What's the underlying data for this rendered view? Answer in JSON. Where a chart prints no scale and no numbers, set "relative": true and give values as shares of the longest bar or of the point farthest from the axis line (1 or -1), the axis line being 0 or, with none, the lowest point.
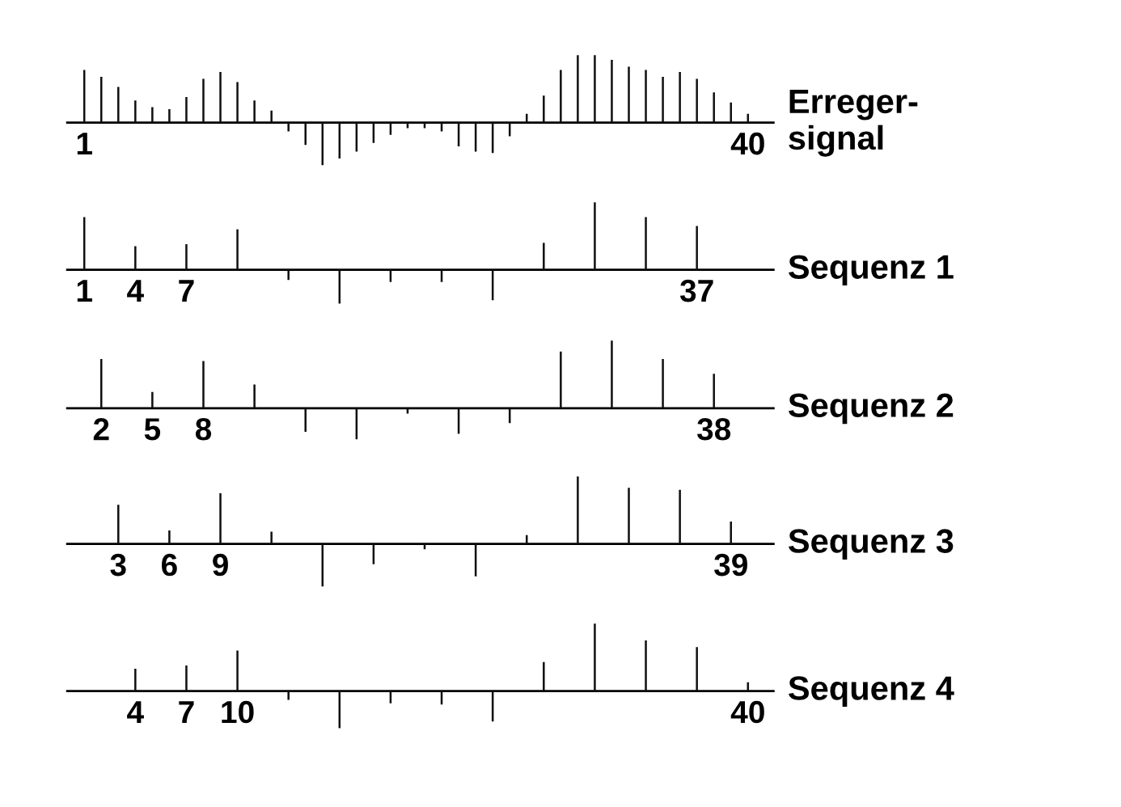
{
  "chart_data": [
    {
      "type": "bar",
      "relative": true,
      "title": "Erreger-\nsignal",
      "color": "#111111",
      "categories": [
        "1",
        null,
        null,
        null,
        null,
        null,
        null,
        null,
        null,
        null,
        null,
        null,
        null,
        null,
        null,
        null,
        null,
        null,
        null,
        null,
        null,
        null,
        null,
        null,
        null,
        null,
        null,
        null,
        null,
        null,
        null,
        null,
        null,
        null,
        null,
        null,
        null,
        null,
        null,
        "40"
      ],
      "values": [
        0.78,
        0.68,
        0.53,
        0.33,
        0.23,
        0.2,
        0.38,
        0.65,
        0.75,
        0.6,
        0.33,
        0.18,
        -0.13,
        -0.33,
        -0.63,
        -0.53,
        -0.43,
        -0.3,
        -0.18,
        -0.08,
        -0.08,
        -0.13,
        -0.35,
        -0.43,
        -0.45,
        -0.2,
        0.13,
        0.4,
        0.78,
        1,
        1,
        0.93,
        0.83,
        0.78,
        0.68,
        0.75,
        0.65,
        0.45,
        0.3,
        0.13
      ]
    },
    {
      "type": "bar",
      "relative": true,
      "title": "Sequenz 1",
      "color": "#111111",
      "categories": [
        "1",
        null,
        null,
        "4",
        null,
        null,
        "7",
        null,
        null,
        null,
        null,
        null,
        null,
        null,
        null,
        null,
        null,
        null,
        null,
        null,
        null,
        null,
        null,
        null,
        null,
        null,
        null,
        null,
        null,
        null,
        null,
        null,
        null,
        null,
        null,
        null,
        "37",
        null,
        null,
        null
      ],
      "values": [
        0.78,
        null,
        null,
        0.35,
        null,
        null,
        0.38,
        null,
        null,
        0.6,
        null,
        null,
        -0.15,
        null,
        null,
        -0.5,
        null,
        null,
        -0.18,
        null,
        null,
        -0.18,
        null,
        null,
        -0.45,
        null,
        null,
        0.4,
        null,
        null,
        1,
        null,
        null,
        0.78,
        null,
        null,
        0.65,
        null,
        null,
        null
      ]
    },
    {
      "type": "bar",
      "relative": true,
      "title": "Sequenz 2",
      "color": "#111111",
      "categories": [
        null,
        "2",
        null,
        null,
        "5",
        null,
        null,
        "8",
        null,
        null,
        null,
        null,
        null,
        null,
        null,
        null,
        null,
        null,
        null,
        null,
        null,
        null,
        null,
        null,
        null,
        null,
        null,
        null,
        null,
        null,
        null,
        null,
        null,
        null,
        null,
        null,
        null,
        "38",
        null,
        null
      ],
      "values": [
        null,
        0.73,
        null,
        null,
        0.24,
        null,
        null,
        0.7,
        null,
        null,
        0.35,
        null,
        null,
        -0.35,
        null,
        null,
        -0.46,
        null,
        null,
        -0.08,
        null,
        null,
        -0.38,
        null,
        null,
        -0.22,
        null,
        null,
        0.84,
        null,
        null,
        1,
        null,
        null,
        0.73,
        null,
        null,
        0.51,
        null,
        null
      ]
    },
    {
      "type": "bar",
      "relative": true,
      "title": "Sequenz 3",
      "color": "#111111",
      "categories": [
        null,
        null,
        "3",
        null,
        null,
        "6",
        null,
        null,
        "9",
        null,
        null,
        null,
        null,
        null,
        null,
        null,
        null,
        null,
        null,
        null,
        null,
        null,
        null,
        null,
        null,
        null,
        null,
        null,
        null,
        null,
        null,
        null,
        null,
        null,
        null,
        null,
        null,
        null,
        "39",
        null
      ],
      "values": [
        null,
        null,
        0.58,
        null,
        null,
        0.2,
        null,
        null,
        0.75,
        null,
        null,
        0.18,
        null,
        null,
        -0.63,
        null,
        null,
        -0.3,
        null,
        null,
        -0.08,
        null,
        null,
        -0.48,
        null,
        null,
        0.13,
        null,
        null,
        1,
        null,
        null,
        0.83,
        null,
        null,
        0.8,
        null,
        null,
        0.33,
        null
      ]
    },
    {
      "type": "bar",
      "relative": true,
      "title": "Sequenz 4",
      "color": "#111111",
      "categories": [
        null,
        null,
        null,
        "4",
        null,
        null,
        "7",
        null,
        null,
        "10",
        null,
        null,
        null,
        null,
        null,
        null,
        null,
        null,
        null,
        null,
        null,
        null,
        null,
        null,
        null,
        null,
        null,
        null,
        null,
        null,
        null,
        null,
        null,
        null,
        null,
        null,
        null,
        null,
        null,
        "40"
      ],
      "values": [
        null,
        null,
        null,
        0.33,
        null,
        null,
        0.38,
        null,
        null,
        0.6,
        null,
        null,
        -0.13,
        null,
        null,
        -0.55,
        null,
        null,
        -0.18,
        null,
        null,
        -0.2,
        null,
        null,
        -0.45,
        null,
        null,
        0.43,
        null,
        null,
        1,
        null,
        null,
        0.75,
        null,
        null,
        0.65,
        null,
        null,
        0.13
      ]
    }
  ]
}
